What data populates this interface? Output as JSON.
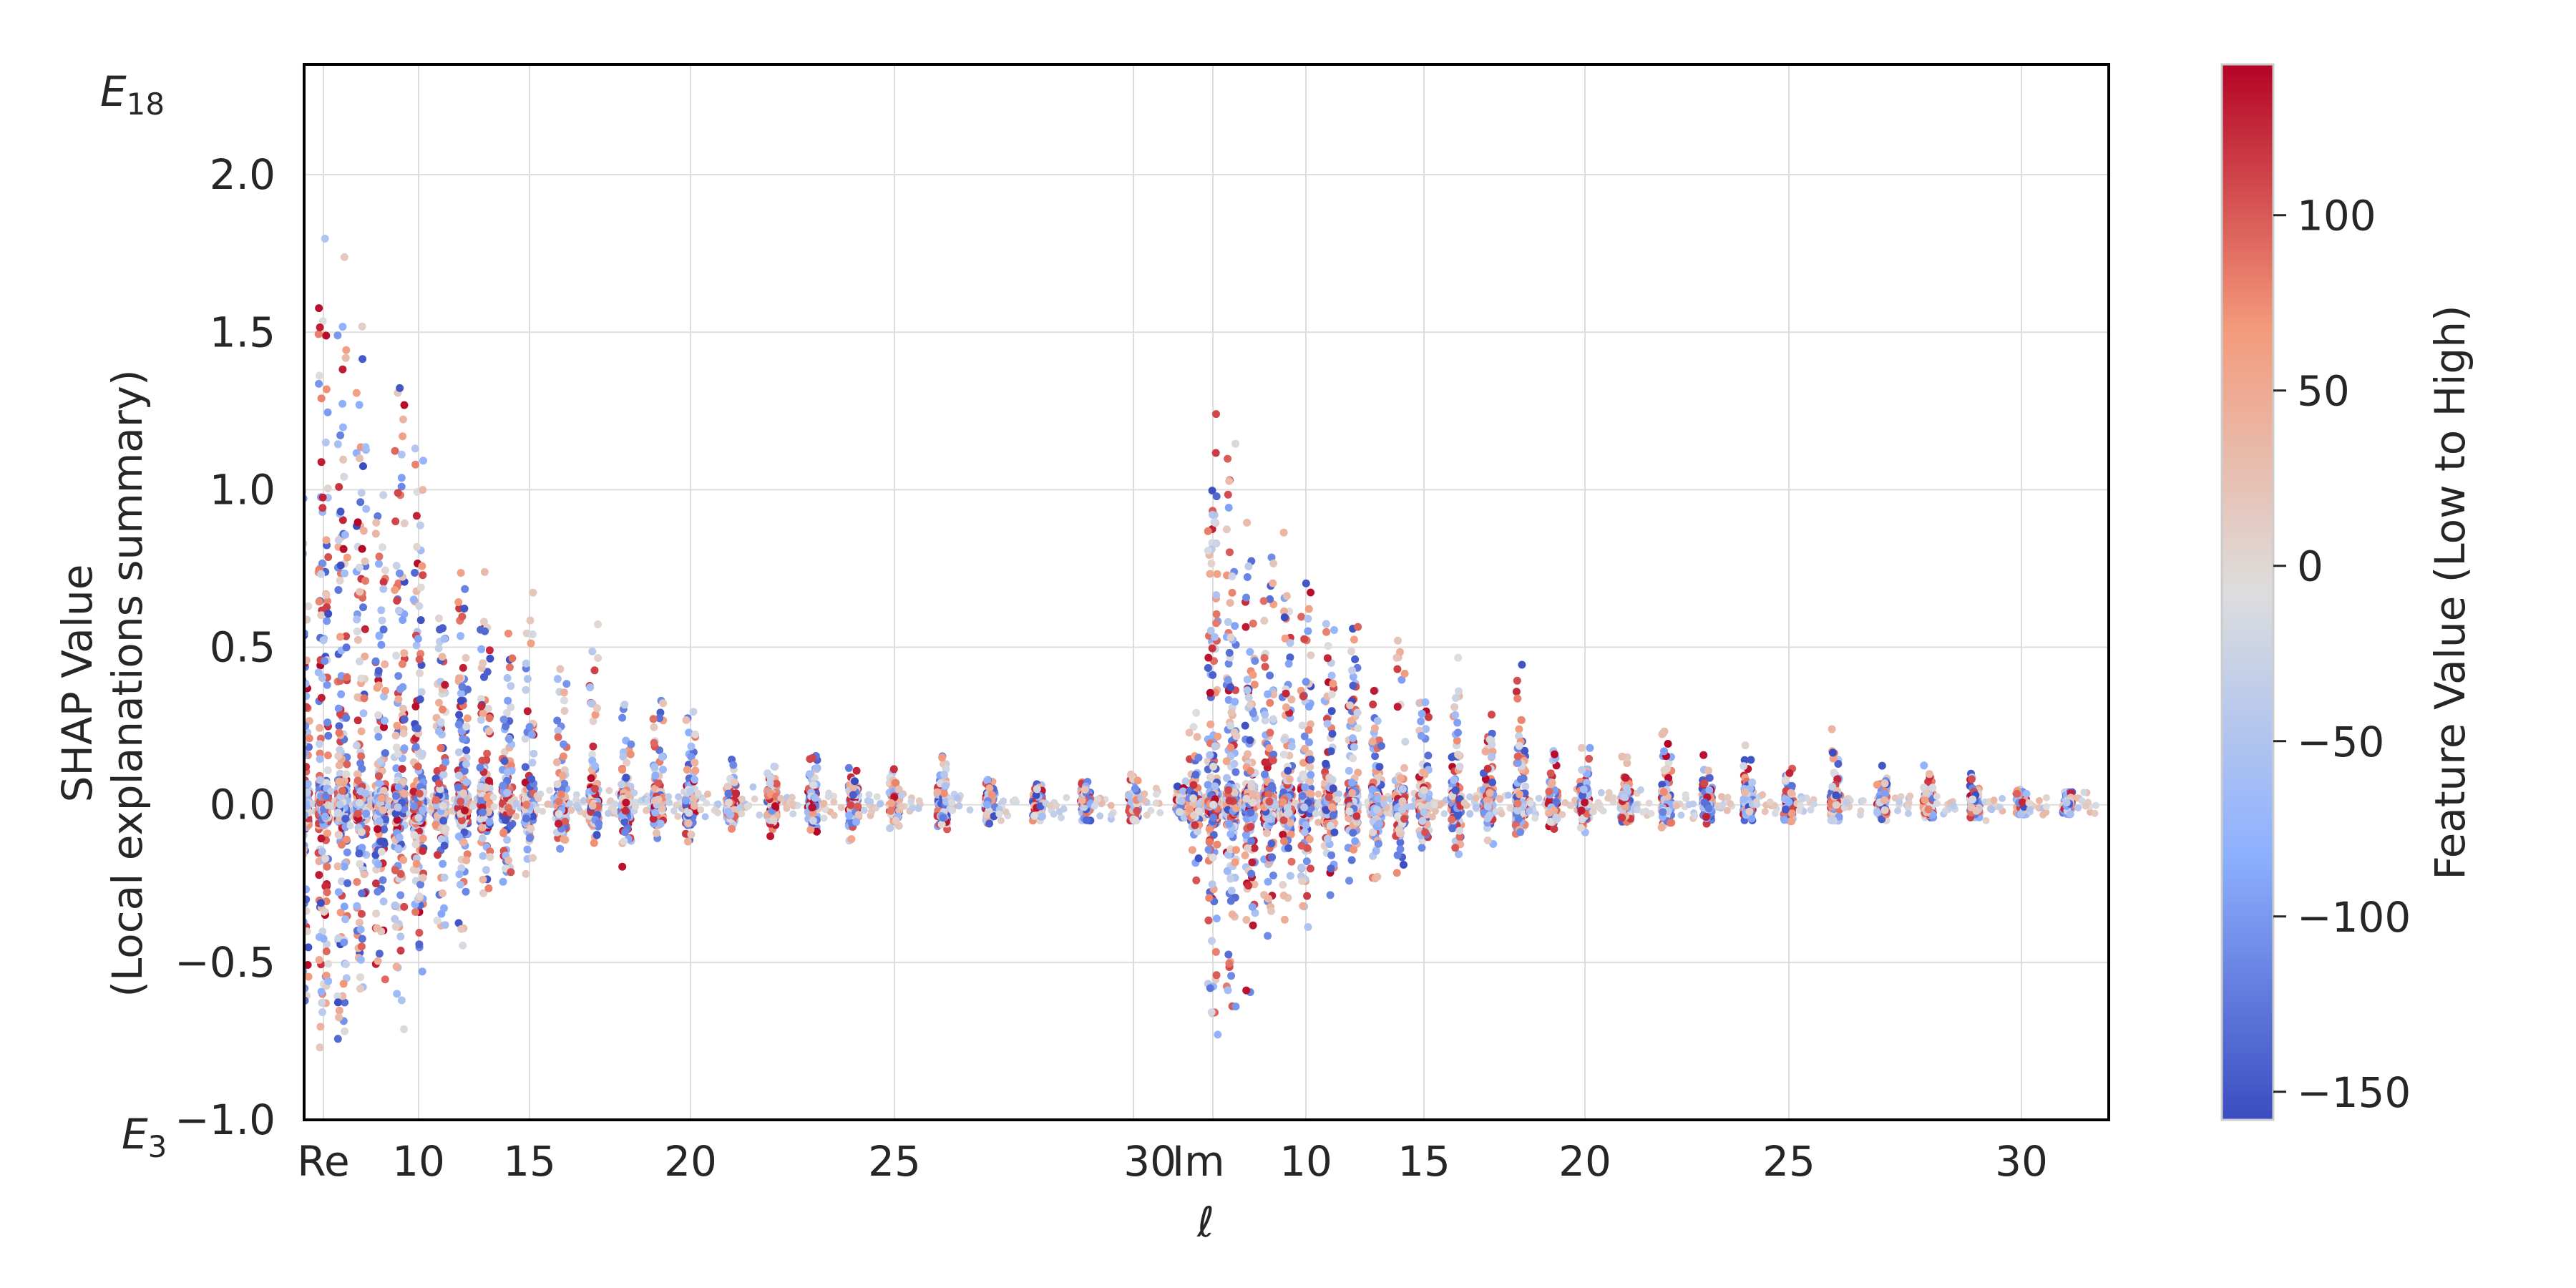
{
  "chart_data": {
    "type": "scatter",
    "subtype": "shap-summary-beeswarm",
    "title": "",
    "xlabel": "ℓ",
    "ylabel": "SHAP Value",
    "ylabel_line2": "(Local explanations summary)",
    "ylim": [
      -1.0,
      2.35
    ],
    "yticks": [
      "−1.0",
      "−0.5",
      "0.0",
      "0.5",
      "1.0",
      "1.5",
      "2.0"
    ],
    "ytick_values": [
      -1.0,
      -0.5,
      0.0,
      0.5,
      1.0,
      1.5,
      2.0
    ],
    "y_corner_labels": {
      "top_base": "E",
      "top_sub": "18",
      "bottom_base": "E",
      "bottom_sub": "3"
    },
    "grid": true,
    "groups": [
      {
        "name": "Re",
        "l_range": [
          4,
          32
        ]
      },
      {
        "name": "Im",
        "l_range": [
          4,
          32
        ]
      }
    ],
    "xticks": [
      {
        "group": 0,
        "l": 5,
        "label": "Re"
      },
      {
        "group": 0,
        "l": 10,
        "label": "10"
      },
      {
        "group": 0,
        "l": 15,
        "label": "15"
      },
      {
        "group": 0,
        "l": 20,
        "label": "20"
      },
      {
        "group": 0,
        "l": 25,
        "label": "25"
      },
      {
        "group": 0,
        "l": 30,
        "label": "30"
      },
      {
        "group": 1,
        "l": 5,
        "label": "Im"
      },
      {
        "group": 1,
        "l": 10,
        "label": "10"
      },
      {
        "group": 1,
        "l": 15,
        "label": "15"
      },
      {
        "group": 1,
        "l": 20,
        "label": "20"
      },
      {
        "group": 1,
        "l": 25,
        "label": "25"
      },
      {
        "group": 1,
        "l": 30,
        "label": "30"
      }
    ],
    "series": [
      {
        "name": "Re",
        "l": [
          4,
          5,
          6,
          7,
          8,
          9,
          10,
          11,
          12,
          13,
          14,
          15,
          16,
          17,
          18,
          19,
          20,
          21,
          22,
          23,
          24,
          25,
          26,
          27,
          28,
          29,
          30,
          31
        ],
        "spread_max": [
          1.15,
          1.95,
          1.85,
          1.65,
          1.2,
          1.6,
          1.28,
          0.85,
          0.94,
          0.78,
          0.6,
          0.7,
          0.54,
          0.6,
          0.42,
          0.4,
          0.36,
          0.2,
          0.2,
          0.23,
          0.22,
          0.14,
          0.22,
          0.11,
          0.1,
          0.1,
          0.12,
          0.08
        ],
        "spread_min": [
          -0.78,
          -0.87,
          -0.82,
          -0.7,
          -0.68,
          -0.72,
          -0.6,
          -0.52,
          -0.48,
          -0.38,
          -0.3,
          -0.28,
          -0.24,
          -0.22,
          -0.2,
          -0.18,
          -0.16,
          -0.1,
          -0.12,
          -0.1,
          -0.14,
          -0.08,
          -0.1,
          -0.06,
          -0.05,
          -0.05,
          -0.05,
          -0.04
        ]
      },
      {
        "name": "Im",
        "l": [
          4,
          5,
          6,
          7,
          8,
          9,
          10,
          11,
          12,
          13,
          14,
          15,
          16,
          17,
          18,
          19,
          20,
          21,
          22,
          23,
          24,
          25,
          26,
          27,
          28,
          29,
          30,
          31
        ],
        "spread_max": [
          0.3,
          1.3,
          1.2,
          1.0,
          0.95,
          0.9,
          0.85,
          0.65,
          0.7,
          0.48,
          0.65,
          0.45,
          0.48,
          0.3,
          0.48,
          0.24,
          0.23,
          0.26,
          0.28,
          0.2,
          0.2,
          0.18,
          0.25,
          0.15,
          0.14,
          0.12,
          0.06,
          0.04
        ],
        "spread_min": [
          -0.3,
          -0.82,
          -0.75,
          -0.6,
          -0.52,
          -0.5,
          -0.45,
          -0.38,
          -0.32,
          -0.28,
          -0.25,
          -0.2,
          -0.18,
          -0.14,
          -0.12,
          -0.12,
          -0.1,
          -0.08,
          -0.08,
          -0.06,
          -0.06,
          -0.06,
          -0.05,
          -0.05,
          -0.04,
          -0.04,
          -0.03,
          -0.03
        ]
      }
    ],
    "colormap": {
      "name": "coolwarm",
      "low": "#3b4cc0",
      "mid": "#dddddd",
      "high": "#b40426"
    },
    "colorbar": {
      "label": "Feature Value (Low to High)",
      "range": [
        -158,
        143
      ],
      "ticks": [
        "100",
        "50",
        "0",
        "−50",
        "−100",
        "−150"
      ],
      "tick_values": [
        100,
        50,
        0,
        -50,
        -100,
        -150
      ]
    },
    "legend": "none"
  }
}
